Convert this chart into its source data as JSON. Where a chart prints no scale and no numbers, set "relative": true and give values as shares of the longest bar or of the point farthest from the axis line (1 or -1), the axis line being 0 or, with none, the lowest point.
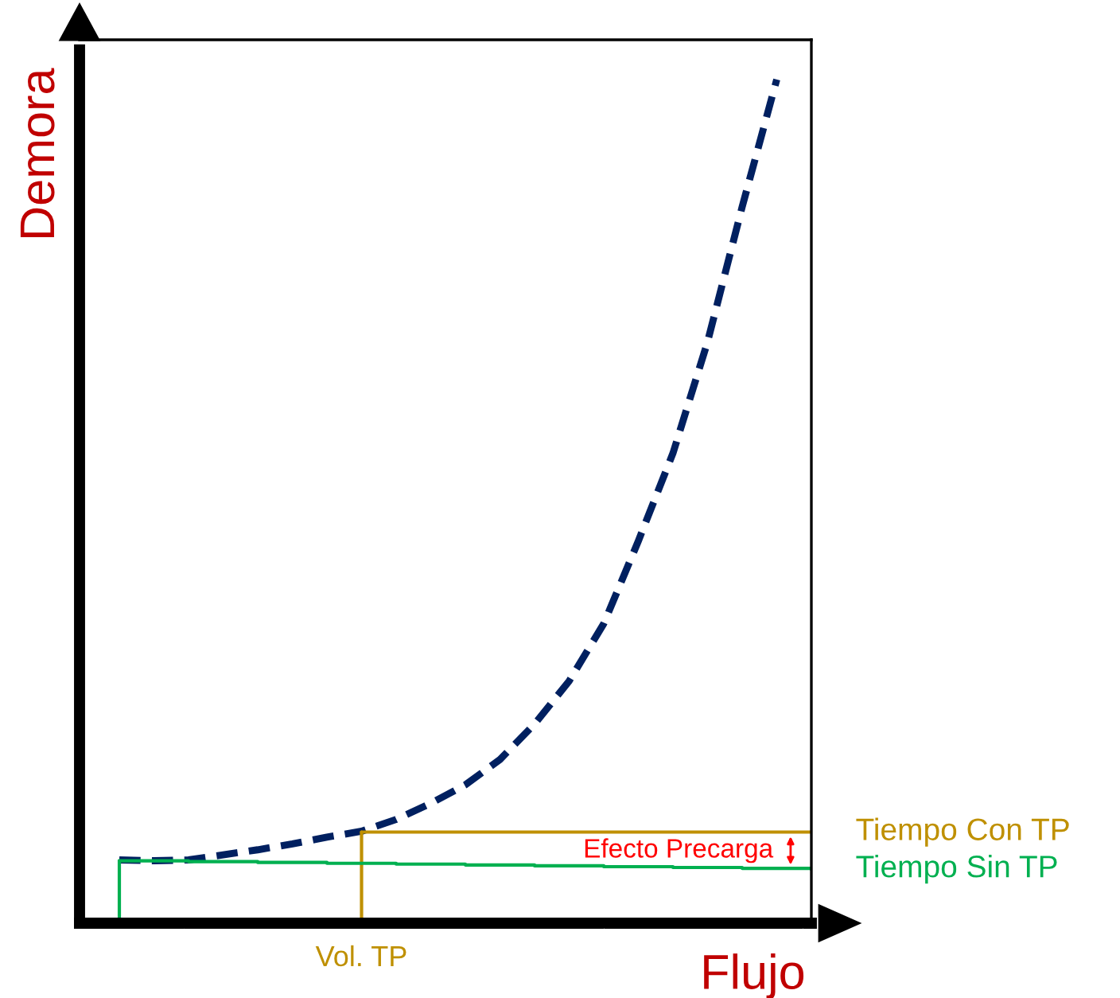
{
  "chart_data": {
    "type": "line",
    "relative": true,
    "xlabel": "Flujo",
    "ylabel": "Demora",
    "categories": [
      null,
      null,
      null,
      null,
      null,
      null,
      null,
      null,
      null,
      null,
      null,
      null,
      null,
      null,
      null,
      null,
      null,
      null,
      null,
      null,
      null
    ],
    "series": [
      {
        "color": "#002060",
        "line_style": "dashed",
        "values": [
          0.075,
          0.074,
          0.075,
          0.081,
          0.087,
          0.094,
          0.102,
          0.109,
          0.123,
          0.142,
          0.164,
          0.194,
          0.236,
          0.287,
          0.355,
          0.453,
          0.557,
          0.689,
          0.849,
          1.0,
          null
        ]
      },
      {
        "type": "step",
        "name": "Tiempo Con TP",
        "color": "#bf9000",
        "values": [
          null,
          null,
          null,
          null,
          null,
          null,
          null,
          0.108,
          0.108,
          0.108,
          0.108,
          0.108,
          0.108,
          0.108,
          0.108,
          0.108,
          0.108,
          0.108,
          0.108,
          0.108,
          0.108
        ]
      },
      {
        "type": "step",
        "name": "Tiempo Sin TP",
        "color": "#00b050",
        "values": [
          0.074,
          0.074,
          0.073,
          0.073,
          0.072,
          0.072,
          0.071,
          0.071,
          0.07,
          0.07,
          0.069,
          0.069,
          0.068,
          0.068,
          0.067,
          0.067,
          0.066,
          0.066,
          0.065,
          0.065,
          0.064
        ]
      }
    ],
    "annotations": [
      "Efecto Precarga",
      "Vol. TP"
    ],
    "legend": false
  }
}
